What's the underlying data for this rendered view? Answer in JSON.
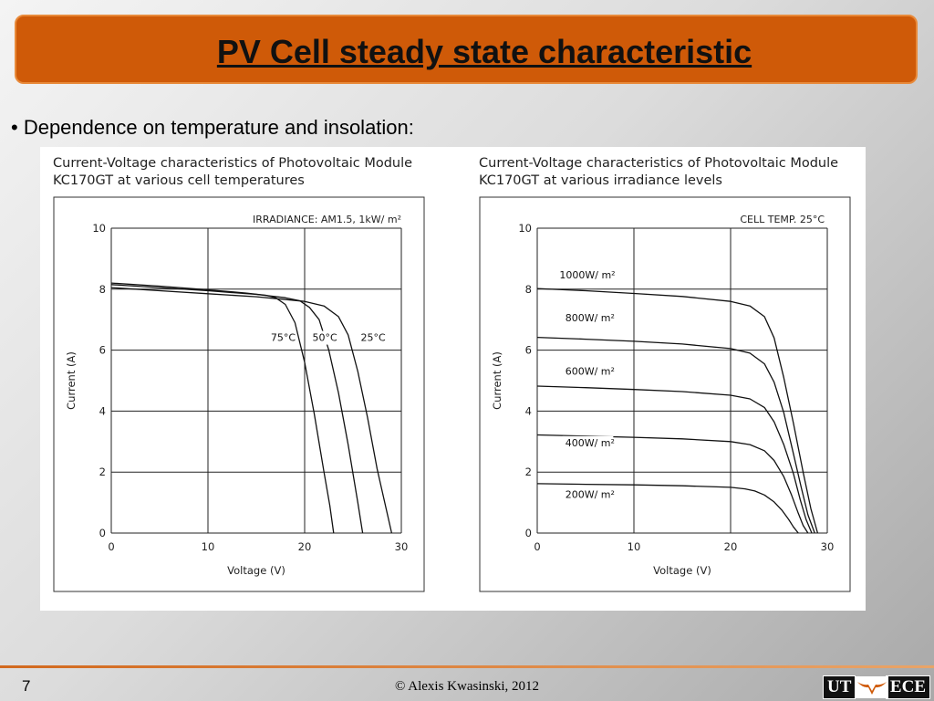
{
  "slide": {
    "title": "PV Cell steady state characteristic",
    "bullet": "• Dependence on temperature and insolation:",
    "page_number": "7",
    "copyright": "© Alexis Kwasinski, 2012",
    "logo_left": "UT",
    "logo_right": "ECE",
    "colors": {
      "title_bar": "#cf5a08",
      "footer_line": "#d2691e"
    },
    "icons": {
      "logo": "ut-ece-longhorn-logo"
    }
  },
  "chart_data": [
    {
      "type": "line",
      "title_line1": "Current-Voltage characteristics of Photovoltaic Module",
      "title_line2": "KC170GT at various cell temperatures",
      "condition": "IRRADIANCE: AM1.5, 1kW/ m²",
      "xlabel": "Voltage (V)",
      "ylabel": "Current  (A)",
      "xlim": [
        0,
        30
      ],
      "ylim": [
        0,
        10
      ],
      "xticks": [
        "0",
        "10",
        "20",
        "30"
      ],
      "yticks": [
        "0",
        "2",
        "4",
        "6",
        "8",
        "10"
      ],
      "grid": true,
      "series": [
        {
          "name": "75°C",
          "x": [
            0,
            5,
            10,
            14,
            16,
            17,
            18,
            19,
            20,
            21,
            22,
            22.6,
            23
          ],
          "y": [
            8.2,
            8.1,
            7.98,
            7.87,
            7.8,
            7.72,
            7.5,
            6.9,
            5.6,
            3.9,
            2.0,
            0.9,
            0
          ]
        },
        {
          "name": "50°C",
          "x": [
            0,
            5,
            10,
            15,
            18,
            19.5,
            20.5,
            21.5,
            22.5,
            23.5,
            24.5,
            25.5,
            26
          ],
          "y": [
            8.15,
            8.05,
            7.95,
            7.83,
            7.72,
            7.62,
            7.4,
            7.0,
            6.0,
            4.6,
            2.9,
            1.0,
            0
          ]
        },
        {
          "name": "25°C",
          "x": [
            0,
            5,
            10,
            15,
            20,
            22,
            23.5,
            24.5,
            25.5,
            26.5,
            27.5,
            28.5,
            29
          ],
          "y": [
            8.05,
            7.95,
            7.85,
            7.75,
            7.6,
            7.45,
            7.1,
            6.5,
            5.3,
            3.8,
            2.1,
            0.7,
            0
          ]
        }
      ],
      "curve_labels": [
        {
          "text": "75°C",
          "x": 16.5,
          "y": 6.3
        },
        {
          "text": "50°C",
          "x": 20.8,
          "y": 6.3
        },
        {
          "text": "25°C",
          "x": 25.8,
          "y": 6.3
        }
      ]
    },
    {
      "type": "line",
      "title_line1": "Current-Voltage characteristics of Photovoltaic Module",
      "title_line2": "KC170GT at various irradiance levels",
      "condition": "CELL TEMP. 25°C",
      "xlabel": "Voltage (V)",
      "ylabel": "Current  (A)",
      "xlim": [
        0,
        30
      ],
      "ylim": [
        0,
        10
      ],
      "xticks": [
        "0",
        "10",
        "20",
        "30"
      ],
      "yticks": [
        "0",
        "2",
        "4",
        "6",
        "8",
        "10"
      ],
      "grid": true,
      "series": [
        {
          "name": "1000W/ m²",
          "x": [
            0,
            5,
            10,
            15,
            20,
            22,
            23.5,
            24.5,
            25.5,
            26.5,
            27.5,
            28.3,
            29
          ],
          "y": [
            8.02,
            7.95,
            7.86,
            7.76,
            7.6,
            7.45,
            7.1,
            6.4,
            5.1,
            3.6,
            2.0,
            0.8,
            0
          ]
        },
        {
          "name": "800W/ m²",
          "x": [
            0,
            5,
            10,
            15,
            20,
            22,
            23.5,
            24.5,
            25.5,
            26.5,
            27.3,
            28,
            28.7
          ],
          "y": [
            6.42,
            6.36,
            6.29,
            6.2,
            6.05,
            5.9,
            5.55,
            4.95,
            3.95,
            2.6,
            1.5,
            0.6,
            0
          ]
        },
        {
          "name": "600W/ m²",
          "x": [
            0,
            5,
            10,
            15,
            20,
            22,
            23.5,
            24.5,
            25.5,
            26.5,
            27.2,
            27.8,
            28.4
          ],
          "y": [
            4.82,
            4.77,
            4.71,
            4.64,
            4.52,
            4.4,
            4.12,
            3.65,
            2.9,
            1.95,
            1.1,
            0.45,
            0
          ]
        },
        {
          "name": "400W/ m²",
          "x": [
            0,
            5,
            10,
            15,
            20,
            22,
            23.5,
            24.5,
            25.5,
            26.3,
            27,
            27.5,
            28
          ],
          "y": [
            3.22,
            3.18,
            3.14,
            3.09,
            3.0,
            2.9,
            2.7,
            2.38,
            1.85,
            1.25,
            0.65,
            0.25,
            0
          ]
        },
        {
          "name": "200W/ m²",
          "x": [
            0,
            5,
            10,
            15,
            20,
            21.5,
            22.5,
            23.5,
            24.5,
            25.3,
            26,
            26.5,
            27
          ],
          "y": [
            1.62,
            1.6,
            1.58,
            1.55,
            1.5,
            1.45,
            1.38,
            1.25,
            1.02,
            0.75,
            0.45,
            0.2,
            0
          ]
        }
      ],
      "curve_labels": [
        {
          "text": "1000W/ m²",
          "x": 2.3,
          "y": 8.35
        },
        {
          "text": "800W/ m²",
          "x": 2.9,
          "y": 6.95
        },
        {
          "text": "600W/ m²",
          "x": 2.9,
          "y": 5.2
        },
        {
          "text": "400W/ m²",
          "x": 2.9,
          "y": 2.85
        },
        {
          "text": "200W/ m²",
          "x": 2.9,
          "y": 1.15
        }
      ]
    }
  ]
}
